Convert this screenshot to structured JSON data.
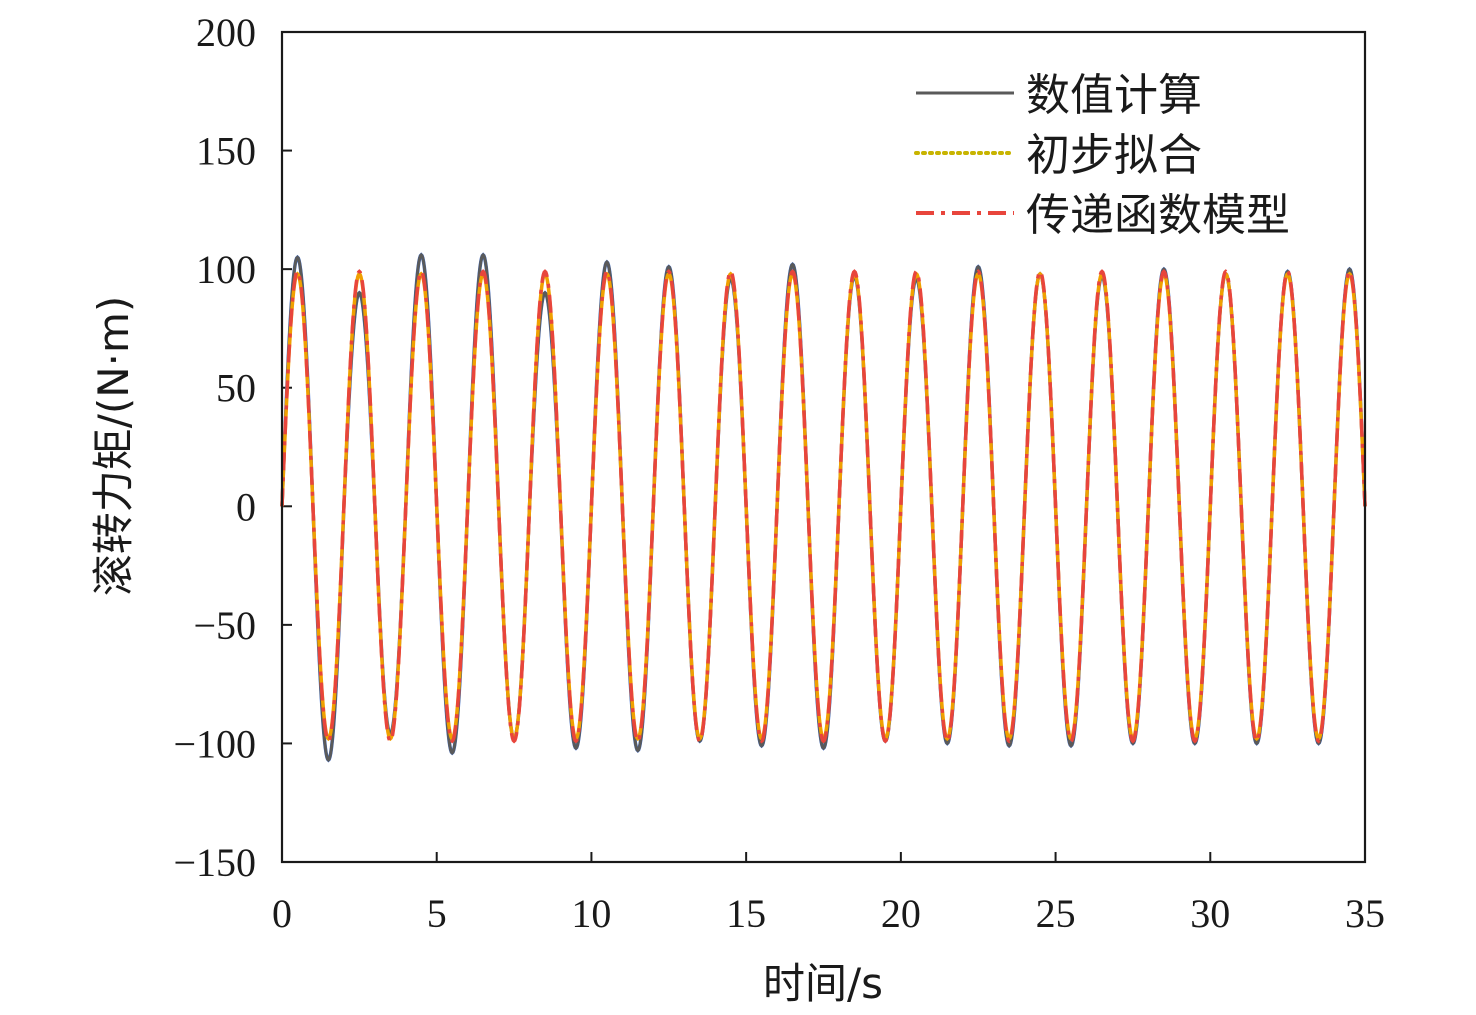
{
  "chart_data": {
    "type": "line",
    "title": "",
    "xlabel": "时间/s",
    "ylabel": "滚转力矩/(N·m)",
    "xlim": [
      0,
      35
    ],
    "ylim": [
      -150,
      200
    ],
    "xticks": [
      "0",
      "5",
      "10",
      "15",
      "20",
      "25",
      "30",
      "35"
    ],
    "yticks": [
      "200",
      "150",
      "100",
      "50",
      "0",
      "−50",
      "−100",
      "−150"
    ],
    "grid": false,
    "legend_position": "top-right",
    "waveform": {
      "shape": "sine",
      "amplitude": 100,
      "period_s": 2.0,
      "phase_start_value": 0,
      "duration_s": 35
    },
    "series": [
      {
        "name": "数值计算",
        "style": "solid",
        "color": "#5a5a5a",
        "peaks": [
          {
            "x": 0.5,
            "y": 105
          },
          {
            "x": 1.5,
            "y": -107
          },
          {
            "x": 2.5,
            "y": 90
          },
          {
            "x": 3.5,
            "y": -96
          },
          {
            "x": 4.5,
            "y": 106
          },
          {
            "x": 5.5,
            "y": -104
          },
          {
            "x": 6.5,
            "y": 106
          },
          {
            "x": 7.5,
            "y": -98
          },
          {
            "x": 8.5,
            "y": 90
          },
          {
            "x": 9.5,
            "y": -102
          },
          {
            "x": 10.5,
            "y": 103
          },
          {
            "x": 11.5,
            "y": -103
          },
          {
            "x": 12.5,
            "y": 101
          },
          {
            "x": 13.5,
            "y": -99
          },
          {
            "x": 14.5,
            "y": 96
          },
          {
            "x": 15.5,
            "y": -101
          },
          {
            "x": 16.5,
            "y": 102
          },
          {
            "x": 17.5,
            "y": -102
          },
          {
            "x": 18.5,
            "y": 97
          },
          {
            "x": 19.5,
            "y": -99
          },
          {
            "x": 20.5,
            "y": 96
          },
          {
            "x": 21.5,
            "y": -100
          },
          {
            "x": 22.5,
            "y": 101
          },
          {
            "x": 23.5,
            "y": -101
          },
          {
            "x": 24.5,
            "y": 98
          },
          {
            "x": 25.5,
            "y": -101
          },
          {
            "x": 26.5,
            "y": 97
          },
          {
            "x": 27.5,
            "y": -100
          },
          {
            "x": 28.5,
            "y": 100
          },
          {
            "x": 29.5,
            "y": -100
          },
          {
            "x": 30.5,
            "y": 98
          },
          {
            "x": 31.5,
            "y": -100
          },
          {
            "x": 32.5,
            "y": 99
          },
          {
            "x": 33.5,
            "y": -100
          },
          {
            "x": 34.5,
            "y": 100
          }
        ]
      },
      {
        "name": "初步拟合",
        "style": "dotted",
        "color": "#c8b400",
        "amplitude": 98,
        "period_s": 2.0
      },
      {
        "name": "传递函数模型",
        "style": "dash-dot",
        "color": "#e8453c",
        "amplitude": 99,
        "period_s": 2.0
      }
    ],
    "colors": {
      "numeric_blue_peaks": "#3a6fd8",
      "fit_overlay": "#f0a000",
      "axis": "#1a1a1a"
    }
  }
}
